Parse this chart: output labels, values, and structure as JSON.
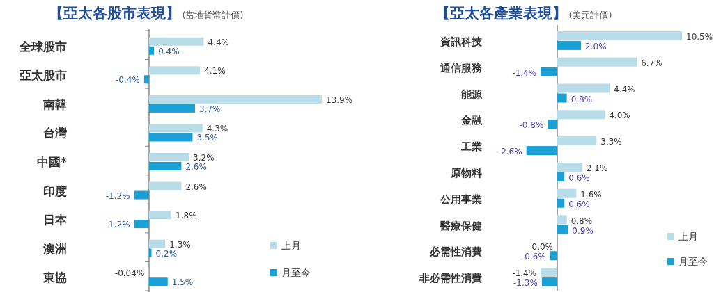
{
  "chart_data": [
    {
      "type": "bar",
      "orientation": "horizontal",
      "title": "【亞太各股市表現】",
      "subtitle": "(當地貨幣計價)",
      "legend": "bottom right",
      "categories": [
        "全球股市",
        "亞太股市",
        "南韓",
        "台灣",
        "中國*",
        "印度",
        "日本",
        "澳洲",
        "東協"
      ],
      "series": [
        {
          "name": "上月",
          "color": "#b8dce8",
          "values": [
            4.4,
            4.1,
            13.9,
            4.3,
            3.2,
            2.6,
            1.8,
            1.3,
            -0.04
          ],
          "value_labels": [
            "4.4%",
            "4.1%",
            "13.9%",
            "4.3%",
            "3.2%",
            "2.6%",
            "1.8%",
            "1.3%",
            "-0.04%"
          ]
        },
        {
          "name": "月至今",
          "color": "#1aa0d4",
          "values": [
            0.4,
            -0.4,
            3.7,
            3.5,
            2.6,
            -1.2,
            -1.2,
            0.2,
            1.5
          ],
          "value_labels": [
            "0.4%",
            "-0.4%",
            "3.7%",
            "3.5%",
            "2.6%",
            "-1.2%",
            "-1.2%",
            "0.2%",
            "1.5%"
          ]
        }
      ]
    },
    {
      "type": "bar",
      "orientation": "horizontal",
      "title": "【亞太各產業表現】",
      "subtitle": "(美元計價)",
      "legend": "bottom right",
      "categories": [
        "資訊科技",
        "通信服務",
        "能源",
        "金融",
        "工業",
        "原物料",
        "公用事業",
        "醫療保健",
        "必需性消費",
        "非必需性消費"
      ],
      "series": [
        {
          "name": "上月",
          "color": "#b8dce8",
          "values": [
            10.5,
            6.7,
            4.4,
            4.0,
            3.3,
            2.1,
            1.6,
            0.8,
            0.0,
            -1.4
          ],
          "value_labels": [
            "10.5%",
            "6.7%",
            "4.4%",
            "4.0%",
            "3.3%",
            "2.1%",
            "1.6%",
            "0.8%",
            "0.0%",
            "-1.4%"
          ]
        },
        {
          "name": "月至今",
          "color": "#1aa0d4",
          "values": [
            2.0,
            -1.4,
            0.8,
            -0.8,
            -2.6,
            0.6,
            0.6,
            0.9,
            -0.6,
            -1.3
          ],
          "value_labels": [
            "2.0%",
            "-1.4%",
            "0.8%",
            "-0.8%",
            "-2.6%",
            "0.6%",
            "0.6%",
            "0.9%",
            "-0.6%",
            "-1.3%"
          ]
        }
      ]
    }
  ]
}
